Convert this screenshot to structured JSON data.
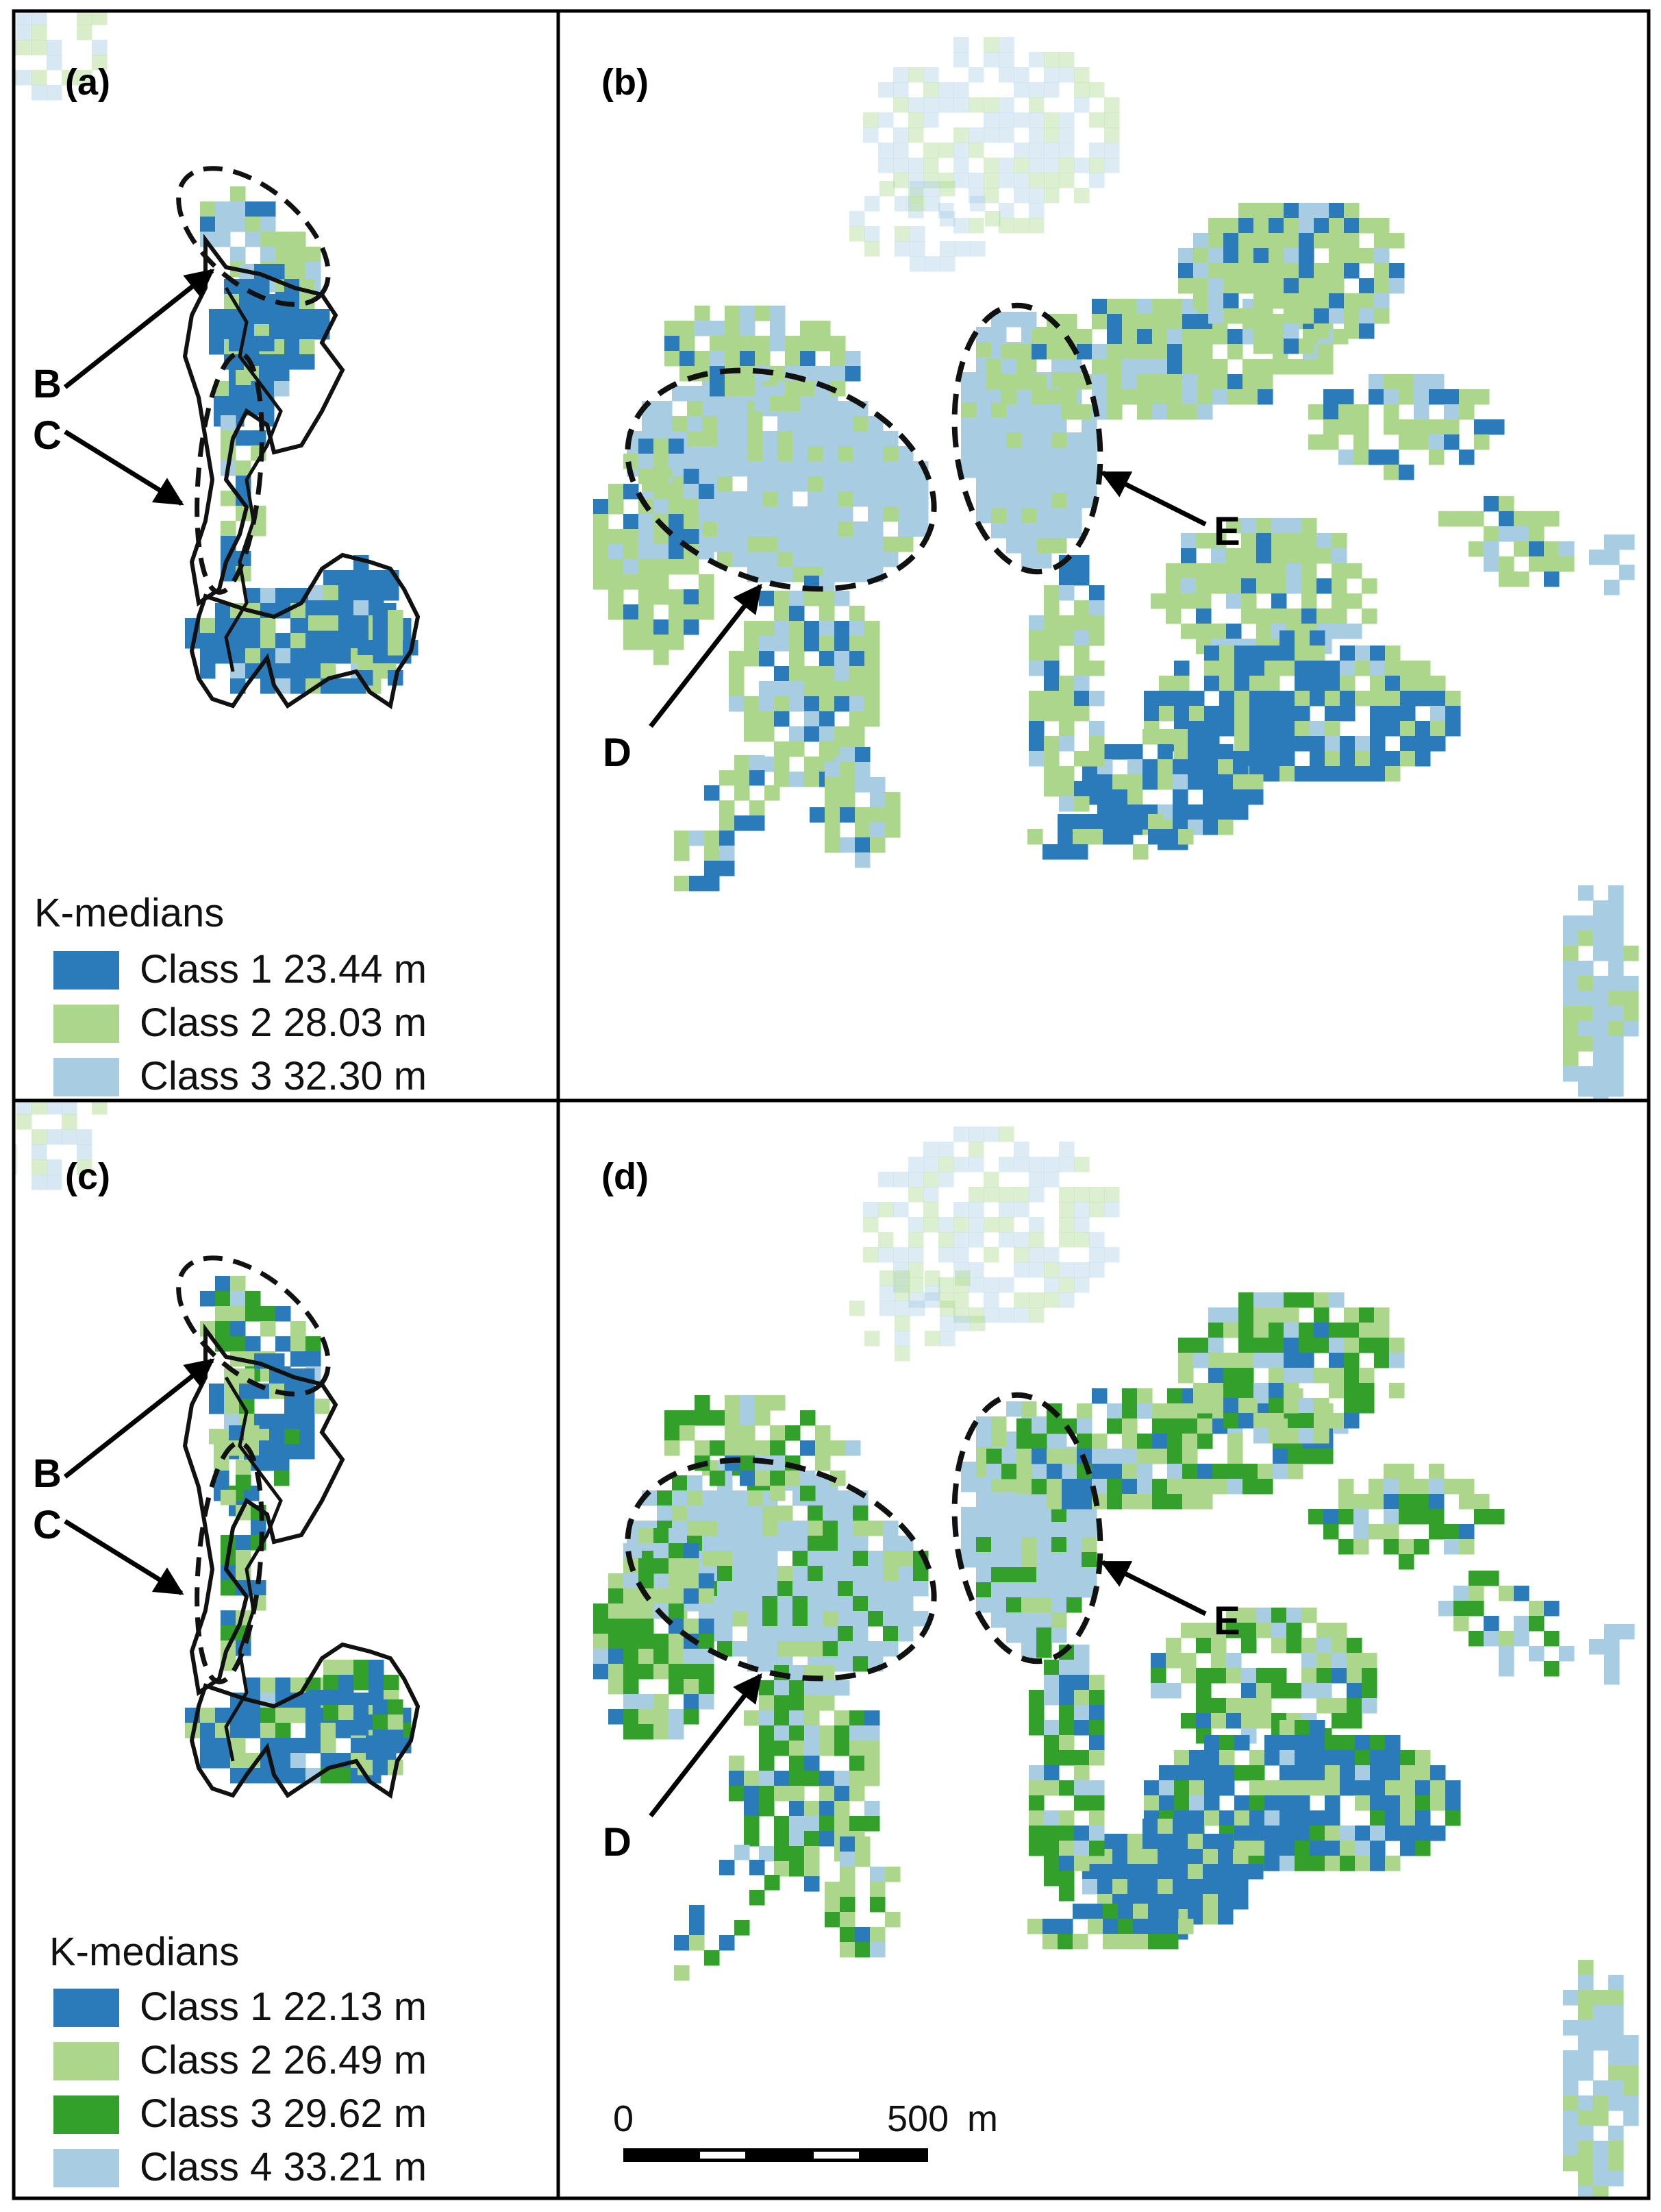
{
  "panels": [
    {
      "id": "a",
      "label": "(a)"
    },
    {
      "id": "b",
      "label": "(b)"
    },
    {
      "id": "c",
      "label": "(c)"
    },
    {
      "id": "d",
      "label": "(d)"
    }
  ],
  "annotations": {
    "a": [
      "B",
      "C"
    ],
    "b": [
      "D",
      "E"
    ],
    "c": [
      "B",
      "C"
    ],
    "d": [
      "D",
      "E"
    ]
  },
  "legend_top": {
    "title": "K-medians",
    "items": [
      {
        "label": "Class 1 23.44 m",
        "color": "#2b7bba"
      },
      {
        "label": "Class 2 28.03 m",
        "color": "#abd68b"
      },
      {
        "label": "Class 3 32.30 m",
        "color": "#a8cde3"
      }
    ]
  },
  "legend_bottom": {
    "title": "K-medians",
    "items": [
      {
        "label": "Class 1 22.13 m",
        "color": "#2b7bba"
      },
      {
        "label": "Class 2 26.49 m",
        "color": "#abd68b"
      },
      {
        "label": "Class 3 29.62 m",
        "color": "#33a02c"
      },
      {
        "label": "Class 4 33.21 m",
        "color": "#a8cde3"
      }
    ]
  },
  "scale_bar": {
    "start": "0",
    "end": "500",
    "unit": "m"
  },
  "colors": {
    "class_dark_blue": "#2b7bba",
    "class_light_green": "#abd68b",
    "class_dark_green": "#33a02c",
    "class_light_blue": "#a8cde3",
    "faded_background": "#dbe9ef",
    "frame": "#000000"
  }
}
